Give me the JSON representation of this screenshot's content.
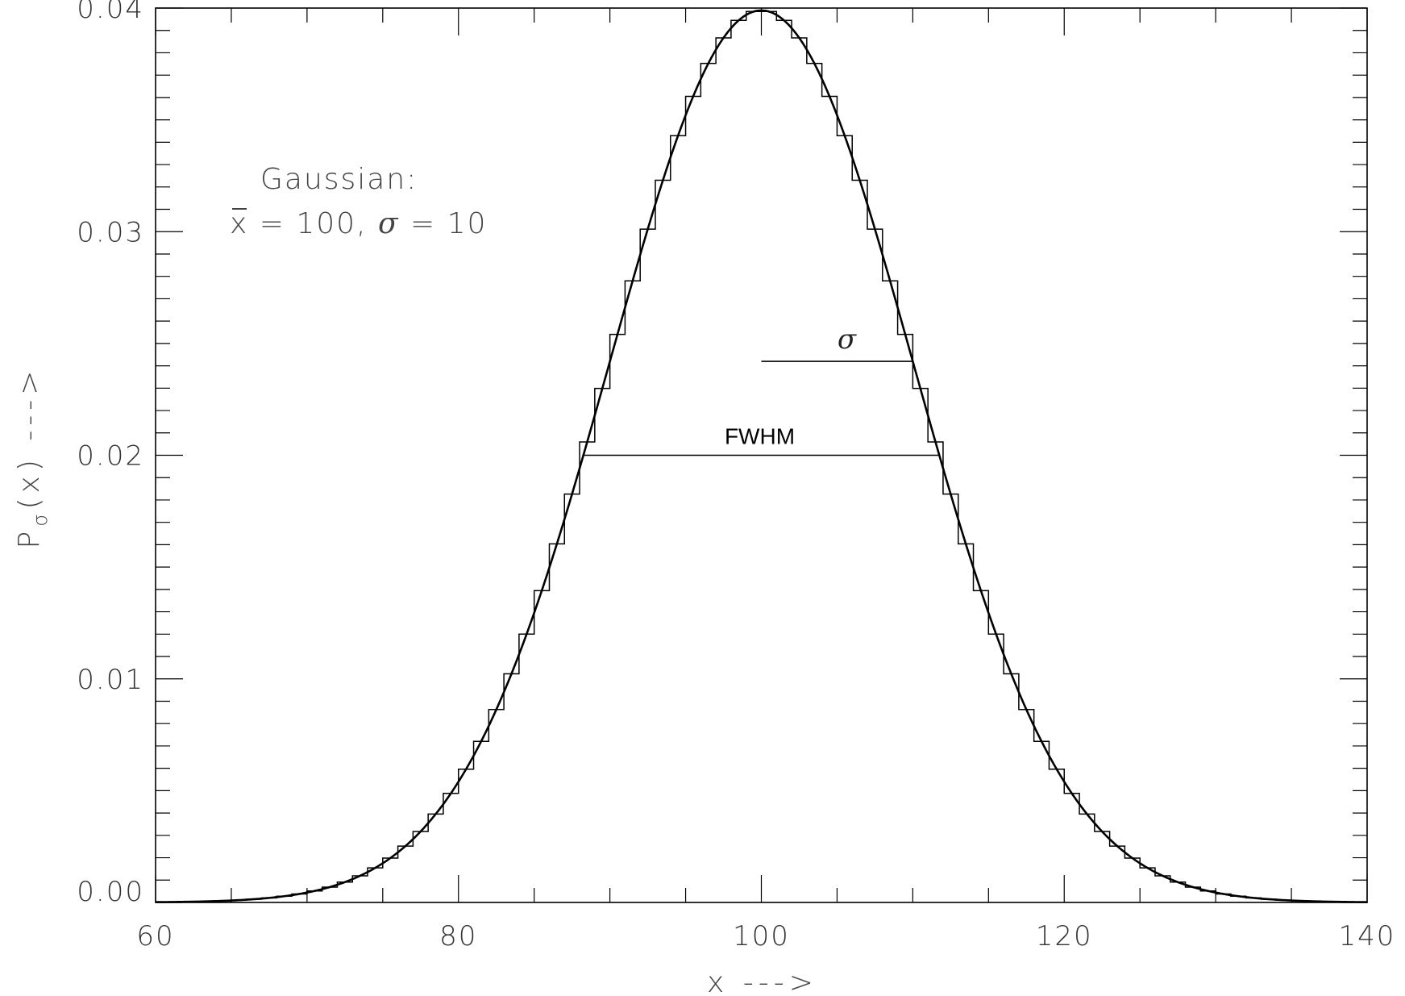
{
  "chart_data": {
    "type": "line",
    "title": "",
    "xlabel": "x --->",
    "ylabel": "P",
    "ylabel_subscript": "σ",
    "ylabel_suffix": "(x) --->",
    "xlim": [
      60,
      140
    ],
    "ylim": [
      0.0,
      0.04
    ],
    "xticks": [
      60,
      80,
      100,
      120,
      140
    ],
    "xtick_labels": [
      "60",
      "80",
      "100",
      "120",
      "140"
    ],
    "yticks": [
      0.0,
      0.01,
      0.02,
      0.03,
      0.04
    ],
    "ytick_labels": [
      "0.00",
      "0.01",
      "0.02",
      "0.03",
      "0.04"
    ],
    "x_minor_step": 5,
    "y_minor_step": 0.001,
    "grid": false,
    "series": [
      {
        "kind": "curve",
        "function": "gaussian",
        "mean": 100,
        "sigma": 10
      },
      {
        "kind": "step-histogram",
        "function": "gaussian",
        "mean": 100,
        "sigma": 10,
        "bin_width": 1
      }
    ],
    "annotations": {
      "legend_line1": "Gaussian:",
      "legend_line2_xbar": "x",
      "legend_line2_mid": " = 100, ",
      "legend_line2_sigma": "σ",
      "legend_line2_end": " = 10",
      "sigma_label": "σ",
      "sigma_segment": {
        "x0": 100,
        "x1": 110,
        "y": 0.0242
      },
      "fwhm_label": "FWHM",
      "fwhm_segment": {
        "x0": 88.2,
        "x1": 111.8,
        "y": 0.02
      }
    }
  }
}
